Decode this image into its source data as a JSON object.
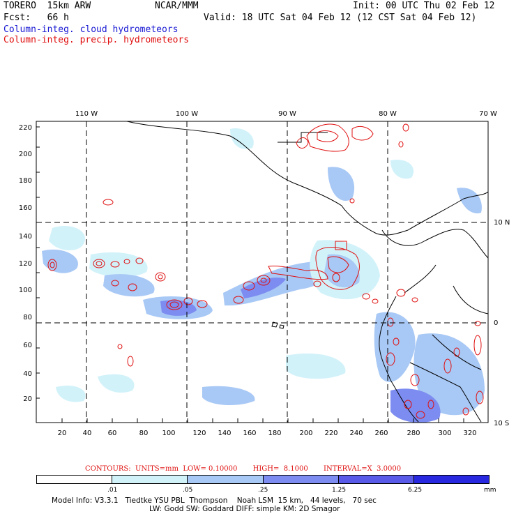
{
  "header": {
    "model": "TORERO  15km ARW",
    "org": "NCAR/MMM",
    "init": "Init: 00 UTC Thu 02 Feb 12",
    "fcst": "Fcst:   66 h",
    "valid": "Valid: 18 UTC Sat 04 Feb 12 (12 CST Sat 04 Feb 12)",
    "field1": "Column-integ. cloud hydrometeors",
    "field2": "Column-integ. precip. hydrometeors"
  },
  "colors": {
    "cloud_text": "#1a1ad4",
    "precip_text": "#e01010",
    "contour": "#e01010",
    "coast": "#000000"
  },
  "map": {
    "lon_labels": [
      "110 W",
      "100 W",
      "90 W",
      "80 W",
      "70 W"
    ],
    "lat_labels": [
      "10 N",
      "0",
      "10 S"
    ],
    "x_ticks": [
      "20",
      "40",
      "60",
      "80",
      "100",
      "120",
      "140",
      "160",
      "180",
      "200",
      "220",
      "240",
      "260",
      "280",
      "300",
      "320"
    ],
    "y_ticks": [
      "20",
      "40",
      "60",
      "80",
      "100",
      "120",
      "140",
      "160",
      "180",
      "200",
      "220"
    ]
  },
  "contours_line": "CONTOURS:  UNITS=mm  LOW= 0.10000       HIGH=  8.1000       INTERVAL=X  3.0000",
  "colorbar": {
    "labels": [
      ".01",
      ".05",
      ".25",
      "1.25",
      "6.25"
    ],
    "unit": "mm",
    "colors": [
      "#ffffff",
      "#d2f2fa",
      "#a8c8f5",
      "#7c8cf0",
      "#5a5ae8",
      "#2828e0"
    ]
  },
  "model_info": {
    "line1": "Model Info: V3.3.1   Tiedtke YSU PBL  Thompson    Noah LSM  15 km,   44 levels,   70 sec",
    "line2": "LW: Godd SW: Goddard DIFF: simple KM: 2D Smagor"
  }
}
